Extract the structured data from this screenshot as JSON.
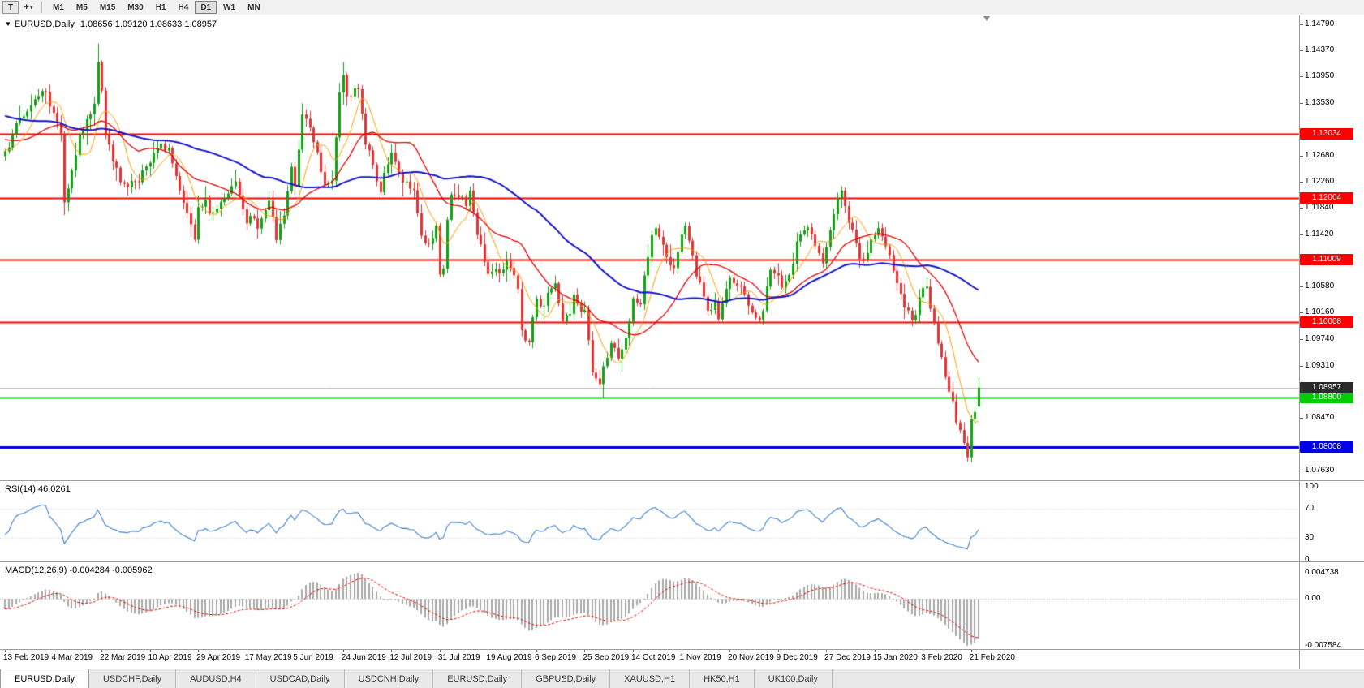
{
  "toolbar": {
    "text_tool_label": "T",
    "crosshair_glyph": "+",
    "dropdown_glyph": "▾",
    "timeframes": [
      "M1",
      "M5",
      "M15",
      "M30",
      "H1",
      "H4",
      "D1",
      "W1",
      "MN"
    ],
    "active_timeframe": "D1"
  },
  "chart": {
    "collapse_glyph": "▼",
    "title": "EURUSD,Daily",
    "quote_line": "1.08656 1.09120 1.08633 1.08957"
  },
  "rsi_panel": {
    "name": "RSI(14)",
    "value": "46.0261"
  },
  "macd_panel": {
    "name": "MACD(12,26,9)",
    "values": "-0.004284 -0.005962"
  },
  "tabs": [
    {
      "label": "EURUSD,Daily",
      "active": true
    },
    {
      "label": "USDCHF,Daily",
      "active": false
    },
    {
      "label": "AUDUSD,H4",
      "active": false
    },
    {
      "label": "USDCAD,Daily",
      "active": false
    },
    {
      "label": "USDCNH,Daily",
      "active": false
    },
    {
      "label": "EURUSD,Daily",
      "active": false
    },
    {
      "label": "GBPUSD,Daily",
      "active": false
    },
    {
      "label": "XAUUSD,H1",
      "active": false
    },
    {
      "label": "HK50,H1",
      "active": false
    },
    {
      "label": "UK100,Daily",
      "active": false
    }
  ],
  "chart_data": {
    "type": "candlestick",
    "symbol": "EURUSD",
    "period": "Daily",
    "current_bar": {
      "open": 1.08656,
      "high": 1.0912,
      "low": 1.08633,
      "close": 1.08957
    },
    "price_ticks": [
      "1.14790",
      "1.14370",
      "1.13950",
      "1.13530",
      "1.13110",
      "1.12680",
      "1.12260",
      "1.11840",
      "1.11420",
      "1.11010",
      "1.10580",
      "1.10160",
      "1.09740",
      "1.09310",
      "1.08890",
      "1.08470",
      "1.08050",
      "1.07630"
    ],
    "hlines": [
      {
        "price": 1.13034,
        "label": "1.13034",
        "color": "#ff0000",
        "width": 2
      },
      {
        "price": 1.12004,
        "label": "1.12004",
        "color": "#ff0000",
        "width": 2
      },
      {
        "price": 1.11009,
        "label": "1.11009",
        "color": "#ff0000",
        "width": 2
      },
      {
        "price": 1.10008,
        "label": "1.10008",
        "color": "#ff0000",
        "width": 2
      },
      {
        "price": 1.088,
        "label": "1.08800",
        "color": "#00cc00",
        "width": 2
      },
      {
        "price": 1.08008,
        "label": "1.08008",
        "color": "#0000e6",
        "width": 3
      }
    ],
    "current_price_line": {
      "price": 1.08957,
      "label": "1.08957",
      "line_color": "#b8b8b8",
      "tag_color": "#2b2b2b"
    },
    "date_labels": [
      "13 Feb 2019",
      "4 Mar 2019",
      "22 Mar 2019",
      "10 Apr 2019",
      "29 Apr 2019",
      "17 May 2019",
      "5 Jun 2019",
      "24 Jun 2019",
      "12 Jul 2019",
      "31 Jul 2019",
      "19 Aug 2019",
      "6 Sep 2019",
      "25 Sep 2019",
      "14 Oct 2019",
      "1 Nov 2019",
      "20 Nov 2019",
      "9 Dec 2019",
      "27 Dec 2019",
      "15 Jan 2020",
      "3 Feb 2020",
      "21 Feb 2020"
    ],
    "bars_per_label": 13,
    "bar_count": 263,
    "close_anchors": [
      [
        0,
        1.1275
      ],
      [
        2,
        1.1305
      ],
      [
        5,
        1.133
      ],
      [
        8,
        1.136
      ],
      [
        11,
        1.1371
      ],
      [
        13,
        1.1336
      ],
      [
        15,
        1.1305
      ],
      [
        16,
        1.1194
      ],
      [
        18,
        1.1245
      ],
      [
        20,
        1.13
      ],
      [
        22,
        1.1325
      ],
      [
        24,
        1.1354
      ],
      [
        25,
        1.142
      ],
      [
        26,
        1.1374
      ],
      [
        27,
        1.1302
      ],
      [
        29,
        1.126
      ],
      [
        31,
        1.1224
      ],
      [
        33,
        1.1216
      ],
      [
        36,
        1.1222
      ],
      [
        38,
        1.1252
      ],
      [
        40,
        1.1274
      ],
      [
        42,
        1.129
      ],
      [
        44,
        1.128
      ],
      [
        46,
        1.1236
      ],
      [
        48,
        1.119
      ],
      [
        51,
        1.1133
      ],
      [
        52,
        1.1186
      ],
      [
        54,
        1.12
      ],
      [
        55,
        1.1174
      ],
      [
        57,
        1.1185
      ],
      [
        58,
        1.1193
      ],
      [
        60,
        1.121
      ],
      [
        62,
        1.1224
      ],
      [
        64,
        1.118
      ],
      [
        65,
        1.1158
      ],
      [
        67,
        1.1168
      ],
      [
        68,
        1.1151
      ],
      [
        70,
        1.1178
      ],
      [
        71,
        1.1193
      ],
      [
        73,
        1.1131
      ],
      [
        75,
        1.1168
      ],
      [
        77,
        1.1248
      ],
      [
        78,
        1.1222
      ],
      [
        80,
        1.1335
      ],
      [
        82,
        1.1312
      ],
      [
        83,
        1.1288
      ],
      [
        85,
        1.124
      ],
      [
        86,
        1.1219
      ],
      [
        88,
        1.1227
      ],
      [
        89,
        1.1296
      ],
      [
        90,
        1.1369
      ],
      [
        91,
        1.1398
      ],
      [
        92,
        1.1365
      ],
      [
        94,
        1.138
      ],
      [
        95,
        1.1373
      ],
      [
        97,
        1.1284
      ],
      [
        98,
        1.1279
      ],
      [
        100,
        1.1226
      ],
      [
        101,
        1.1208
      ],
      [
        103,
        1.1254
      ],
      [
        104,
        1.127
      ],
      [
        106,
        1.1238
      ],
      [
        107,
        1.1224
      ],
      [
        109,
        1.1216
      ],
      [
        110,
        1.121
      ],
      [
        112,
        1.1139
      ],
      [
        114,
        1.1128
      ],
      [
        116,
        1.1155
      ],
      [
        117,
        1.1075
      ],
      [
        118,
        1.1085
      ],
      [
        119,
        1.1164
      ],
      [
        120,
        1.1203
      ],
      [
        122,
        1.12
      ],
      [
        124,
        1.1186
      ],
      [
        125,
        1.1213
      ],
      [
        127,
        1.1139
      ],
      [
        129,
        1.1098
      ],
      [
        130,
        1.1078
      ],
      [
        132,
        1.1086
      ],
      [
        133,
        1.1081
      ],
      [
        135,
        1.11
      ],
      [
        137,
        1.1078
      ],
      [
        138,
        1.1057
      ],
      [
        139,
        1.099
      ],
      [
        141,
        1.0972
      ],
      [
        143,
        1.1035
      ],
      [
        145,
        1.103
      ],
      [
        146,
        1.1049
      ],
      [
        148,
        1.1062
      ],
      [
        150,
        1.1003
      ],
      [
        152,
        1.1012
      ],
      [
        153,
        1.1043
      ],
      [
        155,
        1.1016
      ],
      [
        156,
        1.1021
      ],
      [
        158,
        1.0921
      ],
      [
        160,
        1.09
      ],
      [
        161,
        1.0932
      ],
      [
        163,
        1.0966
      ],
      [
        165,
        1.094
      ],
      [
        166,
        1.0957
      ],
      [
        168,
        1.1
      ],
      [
        169,
        1.104
      ],
      [
        171,
        1.103
      ],
      [
        172,
        1.1074
      ],
      [
        174,
        1.1138
      ],
      [
        175,
        1.1151
      ],
      [
        177,
        1.1126
      ],
      [
        178,
        1.1105
      ],
      [
        180,
        1.1086
      ],
      [
        181,
        1.1113
      ],
      [
        183,
        1.1152
      ],
      [
        185,
        1.1108
      ],
      [
        186,
        1.1073
      ],
      [
        188,
        1.104
      ],
      [
        189,
        1.1018
      ],
      [
        191,
        1.1034
      ],
      [
        192,
        1.1006
      ],
      [
        194,
        1.1052
      ],
      [
        195,
        1.1072
      ],
      [
        197,
        1.1062
      ],
      [
        198,
        1.1058
      ],
      [
        200,
        1.1024
      ],
      [
        201,
        1.1017
      ],
      [
        203,
        1.1008
      ],
      [
        204,
        1.1018
      ],
      [
        206,
        1.1082
      ],
      [
        207,
        1.1077
      ],
      [
        209,
        1.1056
      ],
      [
        210,
        1.1064
      ],
      [
        212,
        1.1094
      ],
      [
        213,
        1.1131
      ],
      [
        215,
        1.1146
      ],
      [
        216,
        1.1152
      ],
      [
        218,
        1.1122
      ],
      [
        220,
        1.1096
      ],
      [
        221,
        1.112
      ],
      [
        223,
        1.1176
      ],
      [
        224,
        1.1199
      ],
      [
        225,
        1.1212
      ],
      [
        227,
        1.116
      ],
      [
        229,
        1.1124
      ],
      [
        230,
        1.1104
      ],
      [
        232,
        1.1114
      ],
      [
        233,
        1.1134
      ],
      [
        235,
        1.115
      ],
      [
        236,
        1.1136
      ],
      [
        238,
        1.1106
      ],
      [
        239,
        1.1084
      ],
      [
        241,
        1.1044
      ],
      [
        242,
        1.1023
      ],
      [
        244,
        1.1004
      ],
      [
        245,
        1.101
      ],
      [
        247,
        1.1052
      ],
      [
        248,
        1.106
      ],
      [
        250,
        1.0999
      ],
      [
        252,
        1.0948
      ],
      [
        253,
        1.0911
      ],
      [
        255,
        1.0874
      ],
      [
        256,
        1.0841
      ],
      [
        258,
        1.0805
      ],
      [
        259,
        1.0786
      ],
      [
        260,
        1.0846
      ],
      [
        261,
        1.0854
      ],
      [
        262,
        1.08957
      ]
    ],
    "wick_overrides": [
      [
        16,
        "low",
        1.1177
      ],
      [
        25,
        "high",
        1.1448
      ],
      [
        91,
        "high",
        1.1412
      ],
      [
        161,
        "low",
        1.0879
      ],
      [
        259,
        "low",
        1.0777
      ]
    ],
    "moving_averages": [
      {
        "period": 8,
        "color": "#ff9a00",
        "width": 1
      },
      {
        "period": 21,
        "color": "#e60000",
        "width": 1.3
      },
      {
        "period": 55,
        "color": "#1414c8",
        "width": 2
      }
    ],
    "candle_colors": {
      "up": "#12a112",
      "down": "#e63232"
    },
    "rsi": {
      "period": 14,
      "levels": [
        "100",
        "70",
        "30",
        "0"
      ],
      "color": "#3f7fd0"
    },
    "macd": {
      "fast": 12,
      "slow": 26,
      "signal": 9,
      "axis": [
        "0.004738",
        "0.00",
        "-0.007584"
      ],
      "hist_color": "#a8a8a8",
      "signal_color": "#e60000"
    }
  }
}
